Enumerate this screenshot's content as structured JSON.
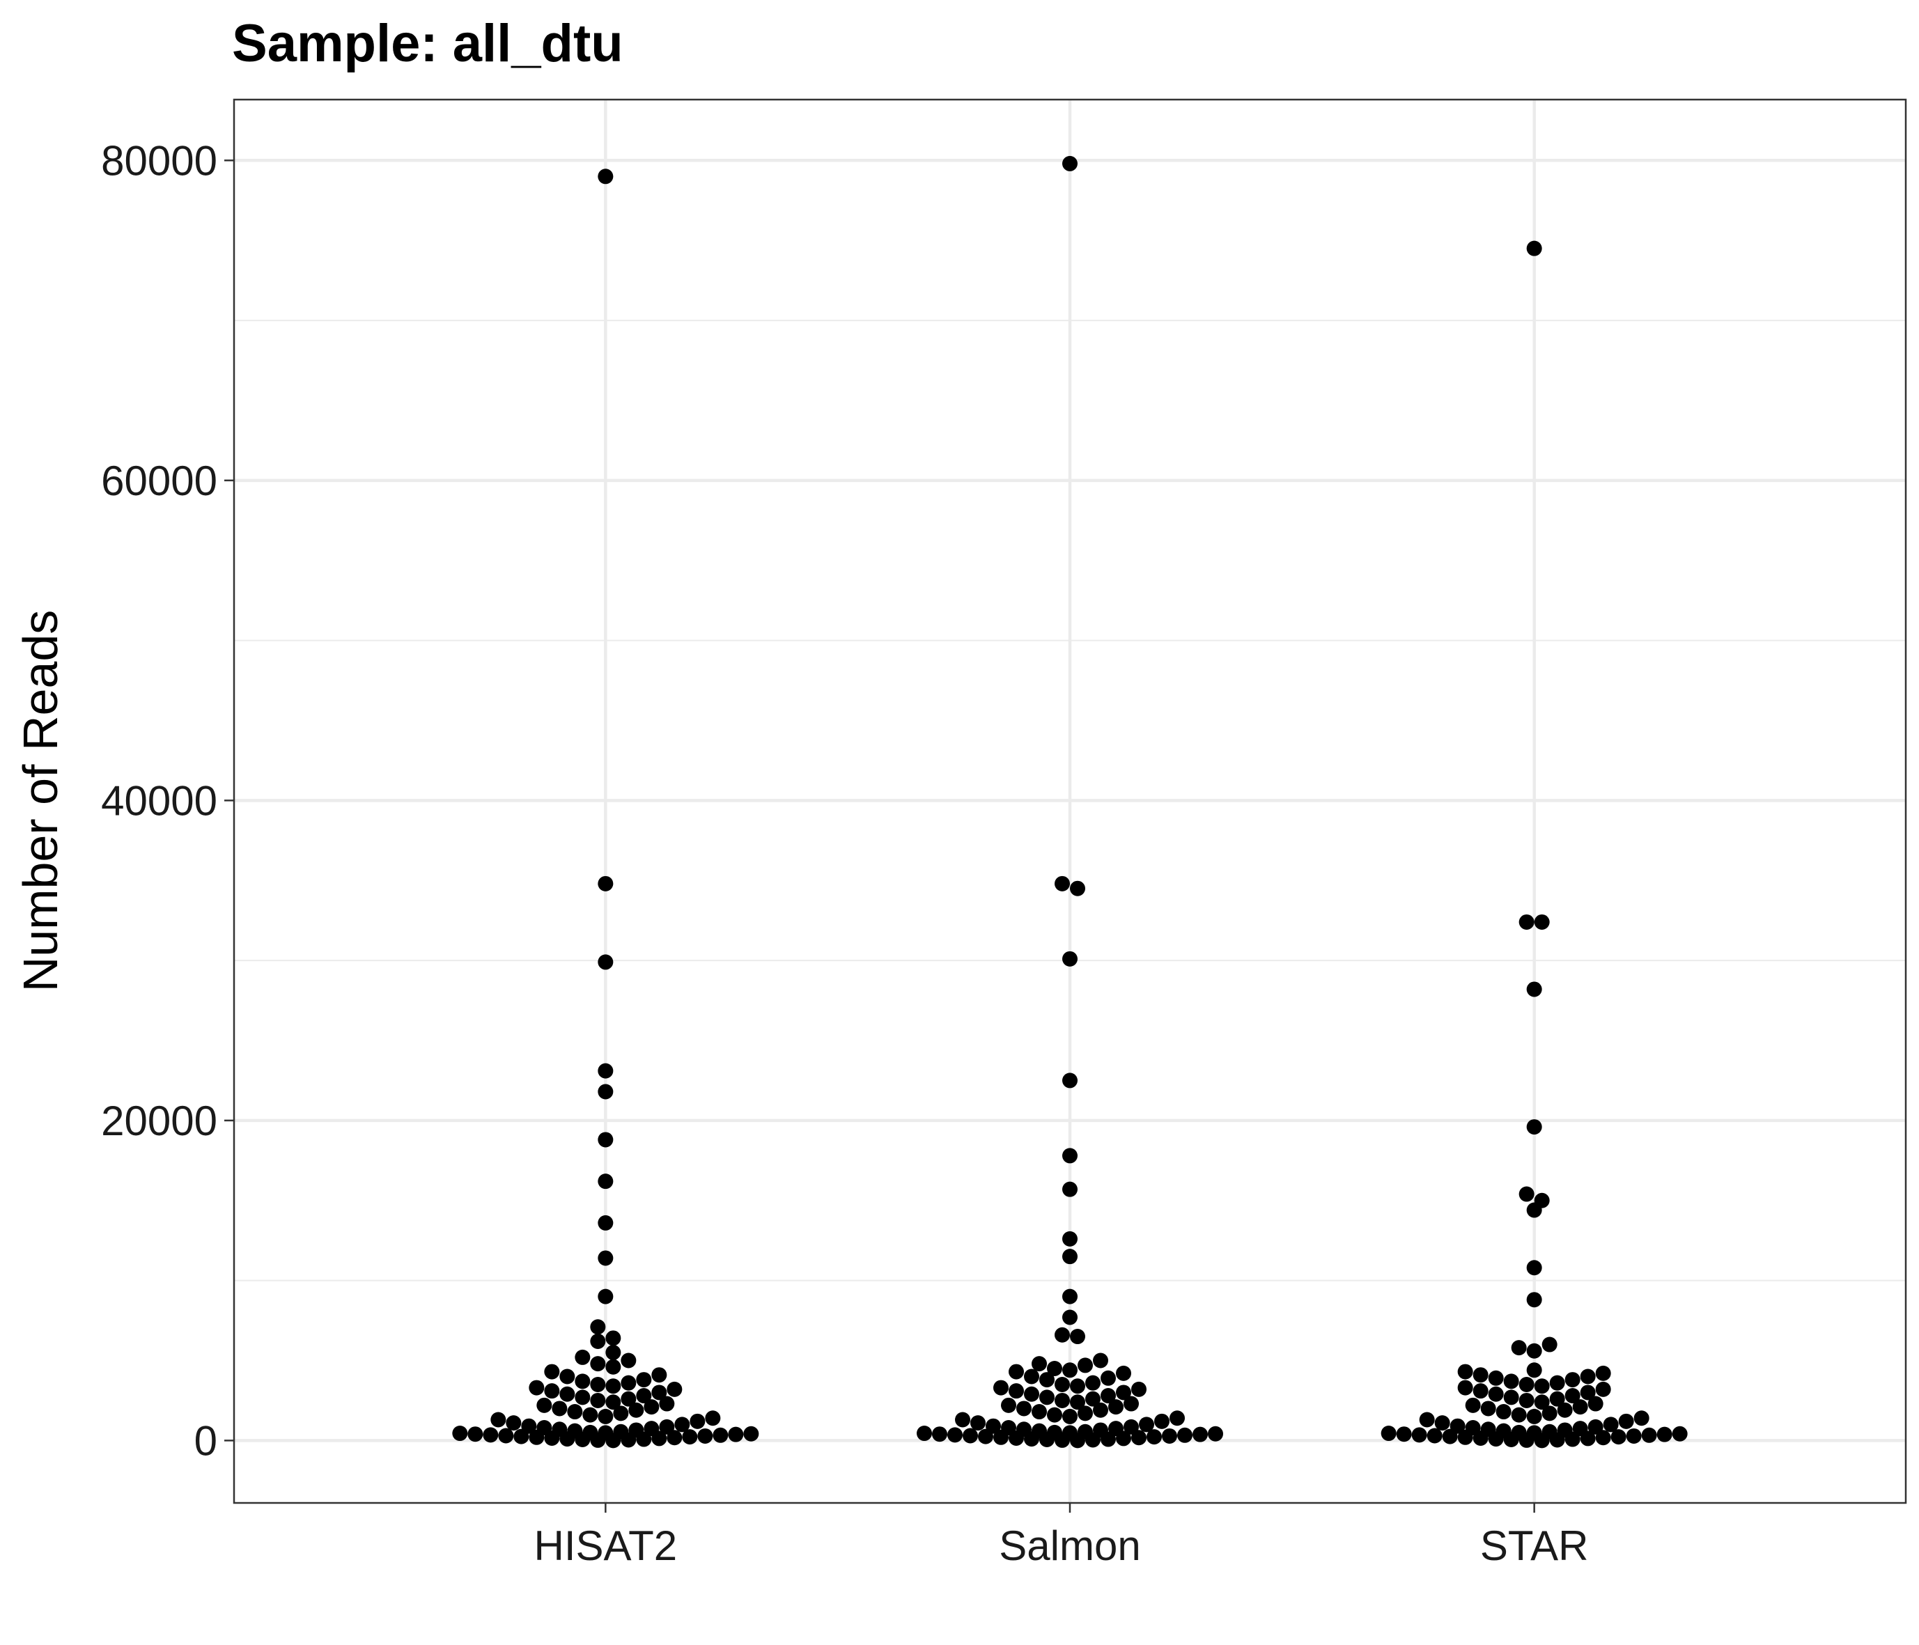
{
  "chart_data": {
    "type": "scatter",
    "title": "Sample: all_dtu",
    "xlabel": "",
    "ylabel": "Number of Reads",
    "categories": [
      "HISAT2",
      "Salmon",
      "STAR"
    ],
    "y_ticks": [
      0,
      20000,
      40000,
      60000,
      80000
    ],
    "y_tick_labels": [
      "0",
      "20000",
      "40000",
      "60000",
      "80000"
    ],
    "ylim": [
      -3900,
      83800
    ],
    "grid": true,
    "legend": "none",
    "point_color": "#000000",
    "series": [
      {
        "category": "HISAT2",
        "values": [
          79000,
          34800,
          29900,
          23100,
          21800,
          18800,
          16200,
          13600,
          11400,
          9000,
          7100,
          6400,
          6200,
          5500,
          5200,
          5000,
          4800,
          4600,
          4300,
          4100,
          4000,
          3800,
          3700,
          3600,
          3500,
          3400,
          3300,
          3200,
          3100,
          3000,
          2900,
          2800,
          2700,
          2600,
          2500,
          2400,
          2300,
          2200,
          2100,
          2000,
          1900,
          1800,
          1700,
          1600,
          1500,
          1400,
          1300,
          1200,
          1100,
          1000,
          900,
          850,
          800,
          750,
          700,
          650,
          600,
          550,
          500,
          480,
          450,
          420,
          400,
          380,
          350,
          330,
          300,
          280,
          250,
          230,
          200,
          180,
          150,
          130,
          100,
          80,
          60,
          40,
          20,
          0
        ]
      },
      {
        "category": "Salmon",
        "values": [
          79800,
          34800,
          34500,
          30100,
          22500,
          17800,
          15700,
          12600,
          11500,
          9000,
          7700,
          6600,
          6500,
          5000,
          4800,
          4700,
          4500,
          4400,
          4300,
          4200,
          4000,
          3900,
          3800,
          3600,
          3500,
          3400,
          3300,
          3200,
          3100,
          3000,
          2900,
          2800,
          2700,
          2600,
          2500,
          2400,
          2300,
          2200,
          2100,
          2000,
          1900,
          1800,
          1700,
          1600,
          1500,
          1400,
          1300,
          1200,
          1100,
          1000,
          900,
          850,
          800,
          750,
          700,
          650,
          600,
          550,
          500,
          480,
          450,
          420,
          400,
          380,
          350,
          330,
          300,
          280,
          250,
          230,
          200,
          180,
          150,
          130,
          100,
          80,
          60,
          40,
          20,
          0
        ]
      },
      {
        "category": "STAR",
        "values": [
          74500,
          32400,
          32400,
          28200,
          19600,
          15400,
          15000,
          14400,
          10800,
          8800,
          6000,
          5800,
          5600,
          4400,
          4300,
          4200,
          4100,
          4000,
          3900,
          3800,
          3700,
          3600,
          3500,
          3400,
          3300,
          3200,
          3100,
          3000,
          2900,
          2800,
          2700,
          2600,
          2500,
          2400,
          2300,
          2200,
          2100,
          2000,
          1900,
          1800,
          1700,
          1600,
          1500,
          1400,
          1300,
          1200,
          1100,
          1000,
          900,
          850,
          800,
          750,
          700,
          650,
          600,
          550,
          500,
          480,
          450,
          420,
          400,
          380,
          350,
          330,
          300,
          280,
          250,
          230,
          200,
          180,
          150,
          130,
          100,
          80,
          60,
          40,
          20,
          0
        ]
      }
    ]
  }
}
